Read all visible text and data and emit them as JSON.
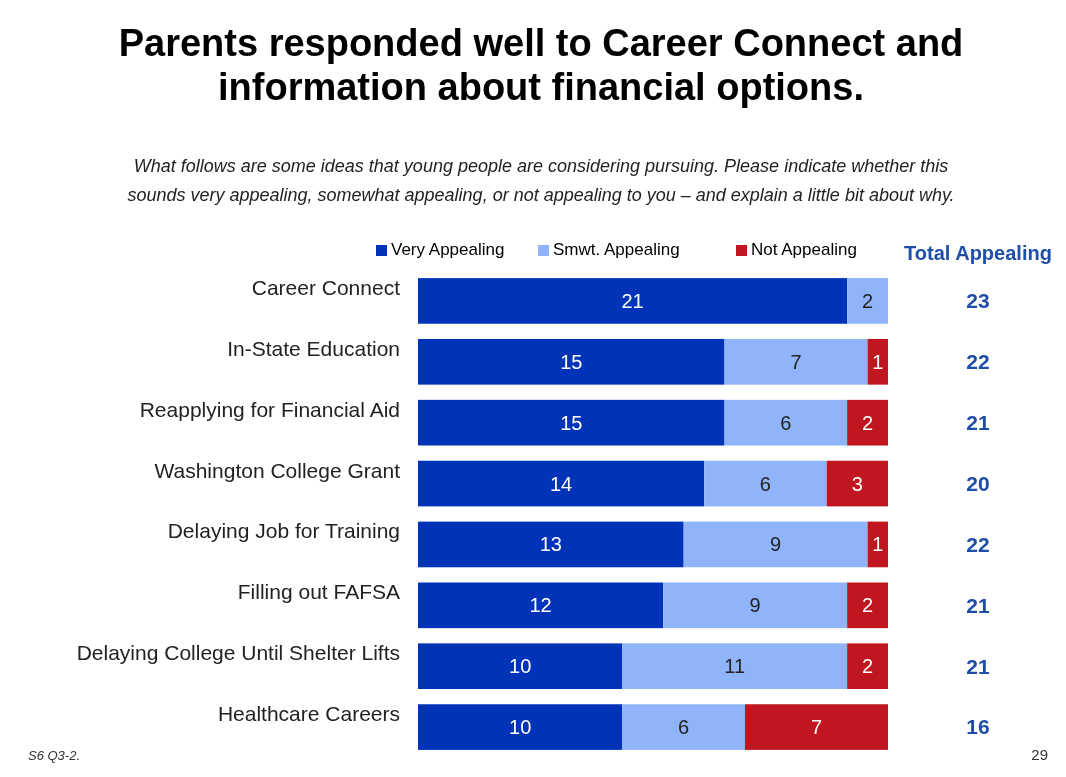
{
  "chart_data": {
    "type": "bar",
    "orientation": "horizontal",
    "stacked": true,
    "title": "Parents responded well to Career Connect and information about financial options.",
    "subtitle": "What follows are some ideas that young people are considering pursuing. Please indicate whether this sounds very appealing, somewhat appealing, or not appealing to you – and explain a little bit about why.",
    "categories": [
      "Career Connect",
      "In-State Education",
      "Reapplying for Financial Aid",
      "Washington College Grant",
      "Delaying Job for Training",
      "Filling out FAFSA",
      "Delaying College Until Shelter Lifts",
      "Healthcare Careers"
    ],
    "series": [
      {
        "name": "Very Appealing",
        "color": "#0033b8",
        "values": [
          21,
          15,
          15,
          14,
          13,
          12,
          10,
          10
        ]
      },
      {
        "name": "Smwt. Appealing",
        "color": "#8fb4fa",
        "values": [
          2,
          7,
          6,
          6,
          9,
          9,
          11,
          6
        ]
      },
      {
        "name": "Not Appealing",
        "color": "#c0161f",
        "values": [
          null,
          1,
          2,
          3,
          1,
          2,
          2,
          7
        ]
      }
    ],
    "xlim": [
      0,
      23
    ],
    "tick_labels": "y",
    "data_labels": true,
    "legend": "top",
    "annotations": [
      "Total Appealing",
      "S6 Q3-2.",
      "29",
      "23",
      "22",
      "21",
      "20",
      "22",
      "21",
      "21",
      "16"
    ]
  }
}
